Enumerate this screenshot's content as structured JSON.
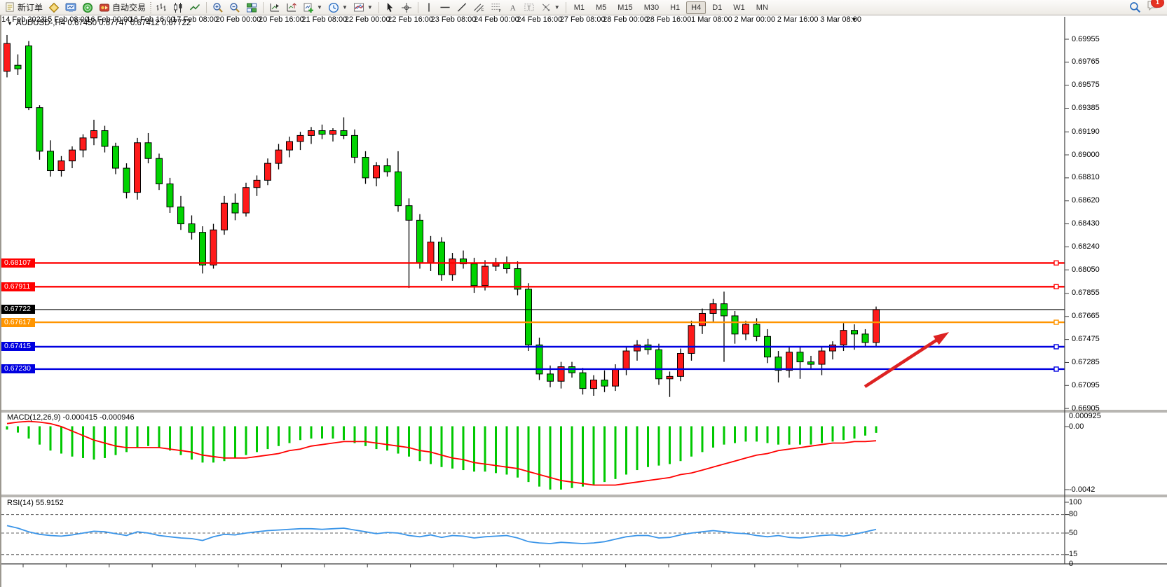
{
  "toolbar": {
    "new_order_label": "新订单",
    "auto_trading_label": "自动交易",
    "timeframes": [
      "M1",
      "M5",
      "M15",
      "M30",
      "H1",
      "H4",
      "D1",
      "W1",
      "MN"
    ],
    "active_timeframe": "H4",
    "notification_badge": "1"
  },
  "window": {
    "title_overlay": "AUDUSD-,H4 0.67450 0.67747 0.67412 0.67722",
    "dropdown_glyph": "▼",
    "shift_marker_glyph": "▼"
  },
  "chart_data": {
    "type": "candlestick",
    "symbol": "AUDUSD-",
    "timeframe": "H4",
    "ohlc_display": {
      "open": "0.67450",
      "high": "0.67747",
      "low": "0.67412",
      "close": "0.67722"
    },
    "colors": {
      "bull": "#fe1a1a",
      "bear": "#00d300",
      "wick": "#000000",
      "background": "#ffffff",
      "axis": "#3c3c3c",
      "line_red": "#ff0000",
      "line_blue": "#0000e0",
      "line_orange": "#ff9500",
      "line_bid": "#000000",
      "macd_histogram": "#00c800",
      "macd_signal": "#ff0000",
      "rsi_line": "#3b95e8",
      "arrow": "#dd2222"
    },
    "price_axis_ticks": [
      "0.69955",
      "0.69765",
      "0.69575",
      "0.69385",
      "0.69190",
      "0.69000",
      "0.68810",
      "0.68620",
      "0.68430",
      "0.68240",
      "0.68050",
      "0.67855",
      "0.67665",
      "0.67475",
      "0.67285",
      "0.67095",
      "0.66905"
    ],
    "horizontal_lines": [
      {
        "price": 0.68107,
        "label": "0.68107",
        "color": "#ff0000",
        "kind": "resistance"
      },
      {
        "price": 0.67911,
        "label": "0.67911",
        "color": "#ff0000",
        "kind": "resistance"
      },
      {
        "price": 0.67722,
        "label": "0.67722",
        "color": "#000000",
        "kind": "bid"
      },
      {
        "price": 0.67617,
        "label": "0.67617",
        "color": "#ff9500",
        "kind": "level"
      },
      {
        "price": 0.67415,
        "label": "0.67415",
        "color": "#0000e0",
        "kind": "support"
      },
      {
        "price": 0.6723,
        "label": "0.67230",
        "color": "#0000e0",
        "kind": "support"
      }
    ],
    "candles": [
      [
        0.6969,
        0.6999,
        0.6964,
        0.6992
      ],
      [
        0.6974,
        0.6983,
        0.6966,
        0.6971
      ],
      [
        0.699,
        0.6994,
        0.6937,
        0.6939
      ],
      [
        0.6939,
        0.6941,
        0.6896,
        0.6903
      ],
      [
        0.6903,
        0.6912,
        0.6882,
        0.6887
      ],
      [
        0.6887,
        0.6899,
        0.6882,
        0.6895
      ],
      [
        0.6895,
        0.6907,
        0.6889,
        0.6904
      ],
      [
        0.6904,
        0.6917,
        0.6898,
        0.6914
      ],
      [
        0.6914,
        0.6929,
        0.6908,
        0.692
      ],
      [
        0.692,
        0.6924,
        0.6902,
        0.6907
      ],
      [
        0.6907,
        0.691,
        0.6884,
        0.6889
      ],
      [
        0.6889,
        0.6893,
        0.6864,
        0.6869
      ],
      [
        0.6869,
        0.6914,
        0.6863,
        0.691
      ],
      [
        0.691,
        0.6918,
        0.6893,
        0.6897
      ],
      [
        0.6897,
        0.6901,
        0.6871,
        0.6876
      ],
      [
        0.6876,
        0.6881,
        0.6852,
        0.6857
      ],
      [
        0.6857,
        0.6866,
        0.6838,
        0.6843
      ],
      [
        0.6843,
        0.685,
        0.683,
        0.6836
      ],
      [
        0.6836,
        0.6841,
        0.6802,
        0.6809
      ],
      [
        0.6809,
        0.6843,
        0.6806,
        0.6838
      ],
      [
        0.6838,
        0.6866,
        0.6834,
        0.686
      ],
      [
        0.686,
        0.6868,
        0.6846,
        0.6852
      ],
      [
        0.6852,
        0.6877,
        0.6849,
        0.6873
      ],
      [
        0.6873,
        0.6883,
        0.6866,
        0.6879
      ],
      [
        0.6879,
        0.6897,
        0.6875,
        0.6893
      ],
      [
        0.6893,
        0.6909,
        0.6888,
        0.6904
      ],
      [
        0.6904,
        0.6915,
        0.6898,
        0.6911
      ],
      [
        0.6911,
        0.6919,
        0.6904,
        0.6916
      ],
      [
        0.6916,
        0.6923,
        0.6909,
        0.692
      ],
      [
        0.692,
        0.6925,
        0.6913,
        0.6917
      ],
      [
        0.6917,
        0.6922,
        0.6911,
        0.692
      ],
      [
        0.692,
        0.6931,
        0.6913,
        0.6916
      ],
      [
        0.6916,
        0.6921,
        0.6893,
        0.6898
      ],
      [
        0.6898,
        0.6903,
        0.6876,
        0.6881
      ],
      [
        0.6881,
        0.6894,
        0.6874,
        0.6891
      ],
      [
        0.6891,
        0.6897,
        0.6882,
        0.6886
      ],
      [
        0.6886,
        0.6903,
        0.6853,
        0.6858
      ],
      [
        0.6858,
        0.6864,
        0.679,
        0.6846
      ],
      [
        0.6846,
        0.6851,
        0.6806,
        0.6811
      ],
      [
        0.6811,
        0.6833,
        0.6804,
        0.6828
      ],
      [
        0.6828,
        0.6832,
        0.6796,
        0.6801
      ],
      [
        0.6801,
        0.6819,
        0.6796,
        0.6814
      ],
      [
        0.6814,
        0.6821,
        0.6806,
        0.681
      ],
      [
        0.681,
        0.6815,
        0.6786,
        0.6792
      ],
      [
        0.6792,
        0.6813,
        0.6788,
        0.6808
      ],
      [
        0.6808,
        0.6815,
        0.6804,
        0.6811
      ],
      [
        0.6811,
        0.6816,
        0.6802,
        0.6806
      ],
      [
        0.6806,
        0.6812,
        0.6784,
        0.6789
      ],
      [
        0.6789,
        0.6794,
        0.6738,
        0.6743
      ],
      [
        0.6743,
        0.6749,
        0.6714,
        0.6719
      ],
      [
        0.6719,
        0.6726,
        0.6708,
        0.6713
      ],
      [
        0.6713,
        0.6729,
        0.6707,
        0.6725
      ],
      [
        0.6725,
        0.6729,
        0.6716,
        0.672
      ],
      [
        0.672,
        0.6724,
        0.6702,
        0.6707
      ],
      [
        0.6707,
        0.6718,
        0.6701,
        0.6714
      ],
      [
        0.6714,
        0.6722,
        0.6704,
        0.6709
      ],
      [
        0.6709,
        0.6727,
        0.6705,
        0.6723
      ],
      [
        0.6723,
        0.6742,
        0.6718,
        0.6738
      ],
      [
        0.6738,
        0.6747,
        0.673,
        0.6743
      ],
      [
        0.6743,
        0.6748,
        0.6735,
        0.6739
      ],
      [
        0.6739,
        0.6744,
        0.671,
        0.6715
      ],
      [
        0.6715,
        0.6721,
        0.67,
        0.6717
      ],
      [
        0.6717,
        0.674,
        0.6713,
        0.6736
      ],
      [
        0.6736,
        0.6763,
        0.673,
        0.6759
      ],
      [
        0.6759,
        0.6773,
        0.6752,
        0.6769
      ],
      [
        0.6769,
        0.6781,
        0.6762,
        0.6777
      ],
      [
        0.6777,
        0.6787,
        0.6729,
        0.6767
      ],
      [
        0.6767,
        0.6771,
        0.6744,
        0.6752
      ],
      [
        0.6752,
        0.6763,
        0.6747,
        0.676
      ],
      [
        0.676,
        0.6765,
        0.6746,
        0.675
      ],
      [
        0.675,
        0.6756,
        0.6728,
        0.6733
      ],
      [
        0.6733,
        0.6738,
        0.6712,
        0.6722
      ],
      [
        0.6722,
        0.6741,
        0.6716,
        0.6737
      ],
      [
        0.6737,
        0.6741,
        0.6715,
        0.6729
      ],
      [
        0.6729,
        0.6734,
        0.6723,
        0.6727
      ],
      [
        0.6727,
        0.6741,
        0.6718,
        0.6738
      ],
      [
        0.6738,
        0.6746,
        0.6731,
        0.6743
      ],
      [
        0.6743,
        0.6761,
        0.6738,
        0.6755
      ],
      [
        0.6755,
        0.676,
        0.6739,
        0.6752
      ],
      [
        0.6752,
        0.6756,
        0.6741,
        0.6745
      ],
      [
        0.6745,
        0.67747,
        0.67412,
        0.67722
      ]
    ],
    "time_axis_labels": [
      "14 Feb 2023",
      "15 Feb 08:00",
      "16 Feb 00:00",
      "16 Feb 16:00",
      "17 Feb 08:00",
      "20 Feb 00:00",
      "20 Feb 16:00",
      "21 Feb 08:00",
      "22 Feb 00:00",
      "22 Feb 16:00",
      "23 Feb 08:00",
      "24 Feb 00:00",
      "24 Feb 16:00",
      "27 Feb 08:00",
      "28 Feb 00:00",
      "28 Feb 16:00",
      "1 Mar 08:00",
      "2 Mar 00:00",
      "2 Mar 16:00",
      "3 Mar 08:00"
    ],
    "macd": {
      "label": "MACD(12,26,9) -0.000415 -0.000946",
      "current_macd": "-0.000415",
      "current_signal": "-0.000946",
      "axis_ticks": [
        "0.000925",
        "0.00",
        "-0.0042"
      ],
      "histogram": [
        -0.0002,
        -0.0004,
        -0.0008,
        -0.0012,
        -0.0016,
        -0.0018,
        -0.002,
        -0.0021,
        -0.0022,
        -0.0021,
        -0.0019,
        -0.0017,
        -0.0014,
        -0.0013,
        -0.0014,
        -0.0016,
        -0.0019,
        -0.0022,
        -0.0024,
        -0.0024,
        -0.0023,
        -0.0021,
        -0.0019,
        -0.0017,
        -0.0015,
        -0.0013,
        -0.0011,
        -0.0009,
        -0.0008,
        -0.0008,
        -0.0008,
        -0.0009,
        -0.0011,
        -0.0013,
        -0.0015,
        -0.0016,
        -0.0018,
        -0.002,
        -0.0023,
        -0.0025,
        -0.0027,
        -0.0028,
        -0.0029,
        -0.003,
        -0.003,
        -0.0031,
        -0.0032,
        -0.0034,
        -0.0037,
        -0.004,
        -0.0042,
        -0.0042,
        -0.0041,
        -0.004,
        -0.0039,
        -0.0037,
        -0.0035,
        -0.0032,
        -0.0029,
        -0.0027,
        -0.0026,
        -0.0025,
        -0.0023,
        -0.002,
        -0.0017,
        -0.0014,
        -0.0012,
        -0.0011,
        -0.001,
        -0.001,
        -0.0011,
        -0.0012,
        -0.0012,
        -0.0012,
        -0.0012,
        -0.0011,
        -0.001,
        -0.0009,
        -0.0008,
        -0.0006,
        -0.000415
      ],
      "signal": [
        0.0002,
        0.0003,
        0.00035,
        0.0003,
        0.0002,
        0.0,
        -0.0003,
        -0.0006,
        -0.0009,
        -0.0011,
        -0.0013,
        -0.0014,
        -0.0014,
        -0.0014,
        -0.0014,
        -0.0015,
        -0.0016,
        -0.0017,
        -0.0019,
        -0.002,
        -0.0021,
        -0.0021,
        -0.0021,
        -0.002,
        -0.0019,
        -0.0018,
        -0.0016,
        -0.0015,
        -0.0013,
        -0.0012,
        -0.0011,
        -0.001,
        -0.001,
        -0.001,
        -0.0011,
        -0.0012,
        -0.0013,
        -0.0014,
        -0.0016,
        -0.0017,
        -0.0019,
        -0.0021,
        -0.0022,
        -0.0024,
        -0.0025,
        -0.0026,
        -0.0027,
        -0.0028,
        -0.003,
        -0.0032,
        -0.0034,
        -0.0036,
        -0.0037,
        -0.0038,
        -0.0039,
        -0.0039,
        -0.0039,
        -0.0038,
        -0.0037,
        -0.0036,
        -0.0035,
        -0.0034,
        -0.0032,
        -0.0031,
        -0.0029,
        -0.0027,
        -0.0025,
        -0.0023,
        -0.0021,
        -0.0019,
        -0.0018,
        -0.0016,
        -0.0015,
        -0.0014,
        -0.0013,
        -0.0012,
        -0.0011,
        -0.0011,
        -0.001,
        -0.001,
        -0.000946
      ]
    },
    "rsi": {
      "label": "RSI(14) 55.9152",
      "current_value": "55.9152",
      "axis_ticks": [
        "100",
        "80",
        "50",
        "15",
        "0"
      ],
      "gridlines": [
        80,
        50,
        15
      ],
      "values": [
        62,
        58,
        52,
        48,
        46,
        45,
        47,
        50,
        53,
        52,
        49,
        46,
        52,
        50,
        46,
        44,
        42,
        41,
        38,
        44,
        48,
        47,
        50,
        52,
        54,
        55,
        56,
        57,
        57,
        56,
        57,
        58,
        55,
        52,
        49,
        51,
        50,
        46,
        44,
        47,
        43,
        46,
        45,
        42,
        44,
        45,
        46,
        42,
        36,
        34,
        33,
        35,
        34,
        33,
        34,
        36,
        40,
        44,
        46,
        46,
        42,
        43,
        47,
        50,
        52,
        54,
        52,
        50,
        49,
        46,
        44,
        46,
        43,
        42,
        44,
        46,
        47,
        45,
        48,
        52,
        56
      ]
    },
    "annotation_arrow": {
      "from": [
        1232,
        552
      ],
      "to": [
        1352,
        474
      ],
      "color": "#dd2222"
    }
  }
}
